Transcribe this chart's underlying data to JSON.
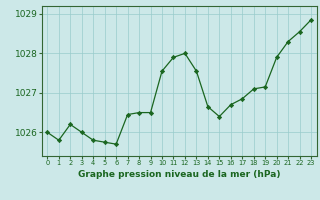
{
  "x": [
    0,
    1,
    2,
    3,
    4,
    5,
    6,
    7,
    8,
    9,
    10,
    11,
    12,
    13,
    14,
    15,
    16,
    17,
    18,
    19,
    20,
    21,
    22,
    23
  ],
  "y": [
    1026.0,
    1025.8,
    1026.2,
    1026.0,
    1025.8,
    1025.75,
    1025.7,
    1026.45,
    1026.5,
    1026.5,
    1027.55,
    1027.9,
    1028.0,
    1027.55,
    1026.65,
    1026.4,
    1026.7,
    1026.85,
    1027.1,
    1027.15,
    1027.9,
    1028.3,
    1028.55,
    1028.85
  ],
  "line_color": "#1a6620",
  "marker": "D",
  "marker_size": 2.2,
  "bg_color": "#cce8e8",
  "grid_color": "#99cccc",
  "xlabel": "Graphe pression niveau de la mer (hPa)",
  "yticks": [
    1026,
    1027,
    1028,
    1029
  ],
  "ylim": [
    1025.4,
    1029.2
  ],
  "xlim": [
    -0.5,
    23.5
  ],
  "tick_color": "#1a6620",
  "label_color": "#1a6620",
  "spine_color": "#336633"
}
